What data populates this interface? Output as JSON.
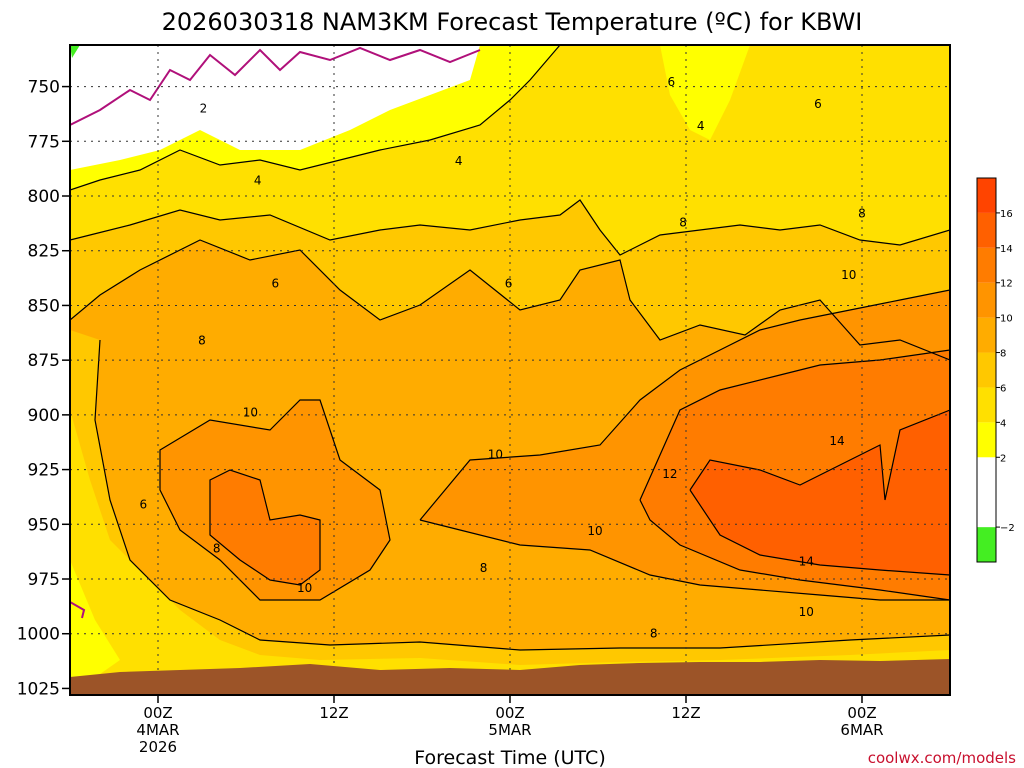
{
  "chart_data": {
    "type": "heatmap",
    "title": "2026030318 NAM3KM Forecast Temperature (ºC) for KBWI",
    "xlabel": "Forecast Time (UTC)",
    "ylabel": "",
    "credit": "coolwx.com/models",
    "y_ticks": [
      "750",
      "775",
      "800",
      "825",
      "850",
      "875",
      "900",
      "925",
      "950",
      "975",
      "1000",
      "1025"
    ],
    "ylim": [
      1028,
      731
    ],
    "x_ticks": [
      {
        "hour": 6,
        "lines": [
          "00Z",
          "4MAR",
          "2026"
        ]
      },
      {
        "hour": 18,
        "lines": [
          "12Z"
        ]
      },
      {
        "hour": 30,
        "lines": [
          "00Z",
          "5MAR"
        ]
      },
      {
        "hour": 42,
        "lines": [
          "12Z"
        ]
      },
      {
        "hour": 54,
        "lines": [
          "00Z",
          "6MAR"
        ]
      }
    ],
    "xlim": [
      0,
      60
    ],
    "colorbar": {
      "levels": [
        -4,
        -2,
        0,
        2,
        4,
        6,
        8,
        10,
        12,
        14,
        16,
        18
      ],
      "colors": [
        "#44ee22",
        "#ffffff",
        "#ffffff",
        "#ffff00",
        "#ffe000",
        "#ffc800",
        "#ffac00",
        "#ff9400",
        "#ff7c00",
        "#ff6000",
        "#ff4400"
      ],
      "tick_labels": [
        "−2",
        "2",
        "4",
        "6",
        "8",
        "10",
        "12",
        "14",
        "16"
      ]
    },
    "contour_labels": [
      {
        "text": "2",
        "hour": 9.1,
        "p": 760
      },
      {
        "text": "4",
        "hour": 12.8,
        "p": 793
      },
      {
        "text": "4",
        "hour": 26.5,
        "p": 784
      },
      {
        "text": "4",
        "hour": 43.0,
        "p": 768
      },
      {
        "text": "6",
        "hour": 41.0,
        "p": 748
      },
      {
        "text": "6",
        "hour": 51.0,
        "p": 758
      },
      {
        "text": "6",
        "hour": 14.0,
        "p": 840
      },
      {
        "text": "6",
        "hour": 29.9,
        "p": 840
      },
      {
        "text": "8",
        "hour": 41.8,
        "p": 812
      },
      {
        "text": "8",
        "hour": 54.0,
        "p": 808
      },
      {
        "text": "8",
        "hour": 9.0,
        "p": 866
      },
      {
        "text": "8",
        "hour": 10.0,
        "p": 961
      },
      {
        "text": "8",
        "hour": 28.2,
        "p": 970
      },
      {
        "text": "8",
        "hour": 39.8,
        "p": 1000
      },
      {
        "text": "6",
        "hour": 5.0,
        "p": 941
      },
      {
        "text": "10",
        "hour": 53.1,
        "p": 836
      },
      {
        "text": "10",
        "hour": 12.3,
        "p": 899
      },
      {
        "text": "10",
        "hour": 29.0,
        "p": 918
      },
      {
        "text": "10",
        "hour": 35.8,
        "p": 953
      },
      {
        "text": "10",
        "hour": 16.0,
        "p": 979
      },
      {
        "text": "10",
        "hour": 50.2,
        "p": 990
      },
      {
        "text": "12",
        "hour": 40.9,
        "p": 927
      },
      {
        "text": "14",
        "hour": 52.3,
        "p": 912
      },
      {
        "text": "14",
        "hour": 50.2,
        "p": 967
      }
    ]
  }
}
